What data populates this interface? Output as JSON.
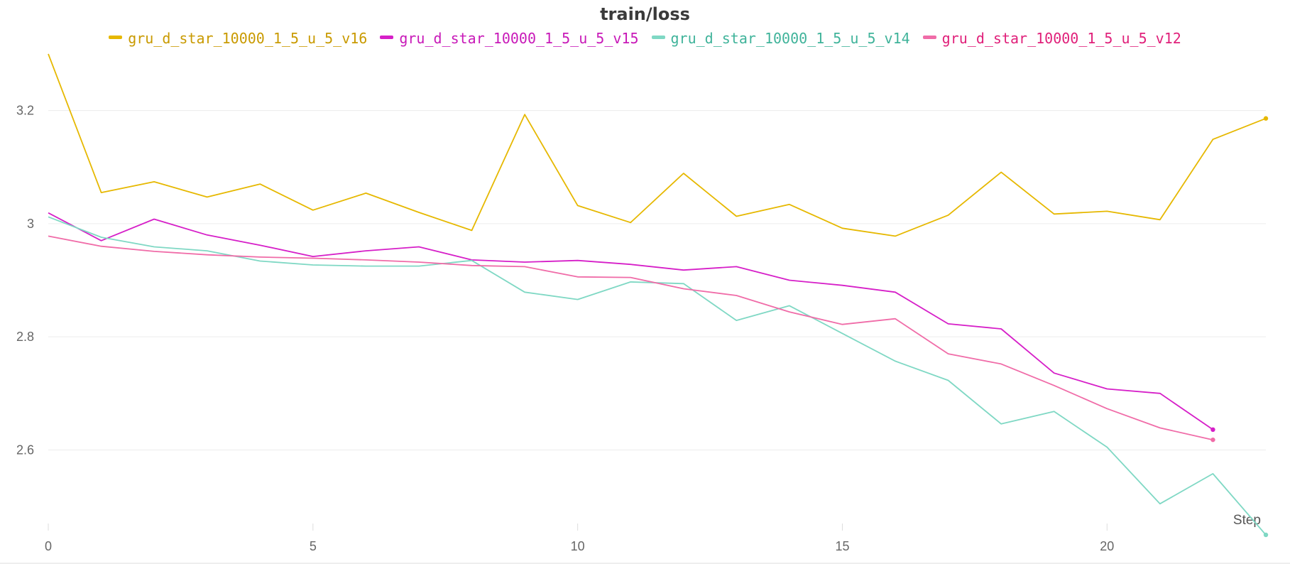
{
  "chart_data": {
    "type": "line",
    "title": "train/loss",
    "xlabel": "Step",
    "ylabel": "",
    "xlim": [
      0,
      23
    ],
    "ylim": [
      2.46,
      3.32
    ],
    "x_ticks": [
      0,
      5,
      10,
      15,
      20
    ],
    "y_ticks": [
      2.6,
      2.8,
      3,
      3.2
    ],
    "y_tick_labels": [
      "2.6",
      "2.8",
      "3",
      "3.2"
    ],
    "grid": "horizontal",
    "legend_position": "top",
    "series": [
      {
        "name": "gru_d_star_10000_1_5_u_5_v16",
        "color": "#e6b800",
        "legend_color": "#c99a00",
        "x": [
          0,
          1,
          2,
          3,
          4,
          5,
          6,
          7,
          8,
          9,
          10,
          11,
          12,
          13,
          14,
          15,
          16,
          17,
          18,
          19,
          20,
          21,
          22,
          23
        ],
        "values": [
          3.3,
          3.055,
          3.074,
          3.047,
          3.07,
          3.024,
          3.054,
          3.02,
          2.988,
          3.193,
          3.032,
          3.002,
          3.089,
          3.013,
          3.034,
          2.992,
          2.978,
          3.015,
          3.091,
          3.017,
          3.022,
          3.007,
          3.149,
          3.186
        ]
      },
      {
        "name": "gru_d_star_10000_1_5_u_5_v15",
        "color": "#d61fc8",
        "legend_color": "#c819b8",
        "x": [
          0,
          1,
          2,
          3,
          4,
          5,
          6,
          7,
          8,
          9,
          10,
          11,
          12,
          13,
          14,
          15,
          16,
          17,
          18,
          19,
          20,
          21,
          22
        ],
        "values": [
          3.019,
          2.97,
          3.008,
          2.98,
          2.962,
          2.942,
          2.952,
          2.959,
          2.936,
          2.932,
          2.935,
          2.928,
          2.918,
          2.924,
          2.9,
          2.891,
          2.879,
          2.823,
          2.814,
          2.736,
          2.708,
          2.7,
          2.636
        ]
      },
      {
        "name": "gru_d_star_10000_1_5_u_5_v14",
        "color": "#7fd8c4",
        "legend_color": "#3fb39a",
        "x": [
          0,
          1,
          2,
          3,
          4,
          5,
          6,
          7,
          8,
          9,
          10,
          11,
          12,
          13,
          14,
          15,
          16,
          17,
          18,
          19,
          20,
          21,
          22,
          23
        ],
        "values": [
          3.012,
          2.976,
          2.959,
          2.952,
          2.934,
          2.927,
          2.925,
          2.925,
          2.935,
          2.879,
          2.866,
          2.897,
          2.894,
          2.829,
          2.855,
          2.806,
          2.757,
          2.723,
          2.646,
          2.668,
          2.605,
          2.505,
          2.558,
          2.45
        ]
      },
      {
        "name": "gru_d_star_10000_1_5_u_5_v12",
        "color": "#f06ca8",
        "legend_color": "#e0207a",
        "x": [
          0,
          1,
          2,
          3,
          4,
          5,
          6,
          7,
          8,
          9,
          10,
          11,
          12,
          13,
          14,
          15,
          16,
          17,
          18,
          19,
          20,
          21,
          22
        ],
        "values": [
          2.978,
          2.96,
          2.951,
          2.945,
          2.941,
          2.939,
          2.936,
          2.932,
          2.926,
          2.924,
          2.906,
          2.905,
          2.885,
          2.873,
          2.844,
          2.822,
          2.832,
          2.77,
          2.752,
          2.714,
          2.673,
          2.639,
          2.618
        ]
      }
    ]
  }
}
